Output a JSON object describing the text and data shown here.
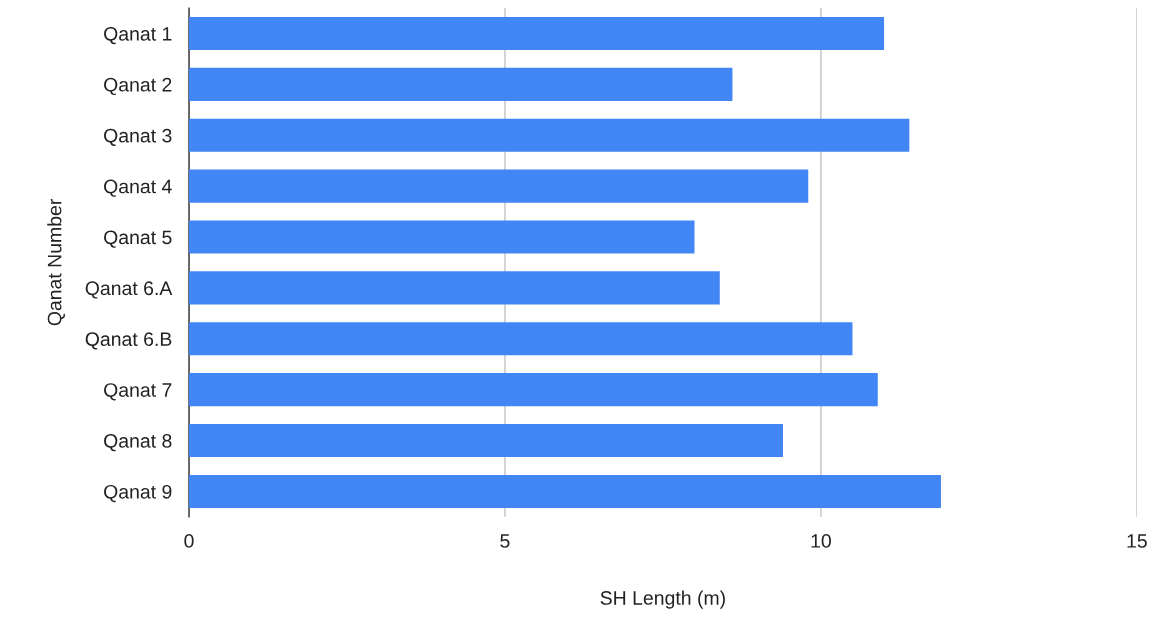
{
  "chart_data": {
    "type": "bar",
    "orientation": "horizontal",
    "xlabel": "SH Length (m)",
    "ylabel": "Qanat Number",
    "categories": [
      "Qanat 1",
      "Qanat 2",
      "Qanat 3",
      "Qanat 4",
      "Qanat 5",
      "Qanat 6.A",
      "Qanat 6.B",
      "Qanat 7",
      "Qanat 8",
      "Qanat 9"
    ],
    "values": [
      11.0,
      8.6,
      11.4,
      9.8,
      8.0,
      8.4,
      10.5,
      10.9,
      9.4,
      11.9
    ],
    "color": "#4285f4",
    "xlim": [
      0,
      15
    ],
    "xticks": [
      0,
      5,
      10,
      15
    ],
    "grid": "x"
  }
}
